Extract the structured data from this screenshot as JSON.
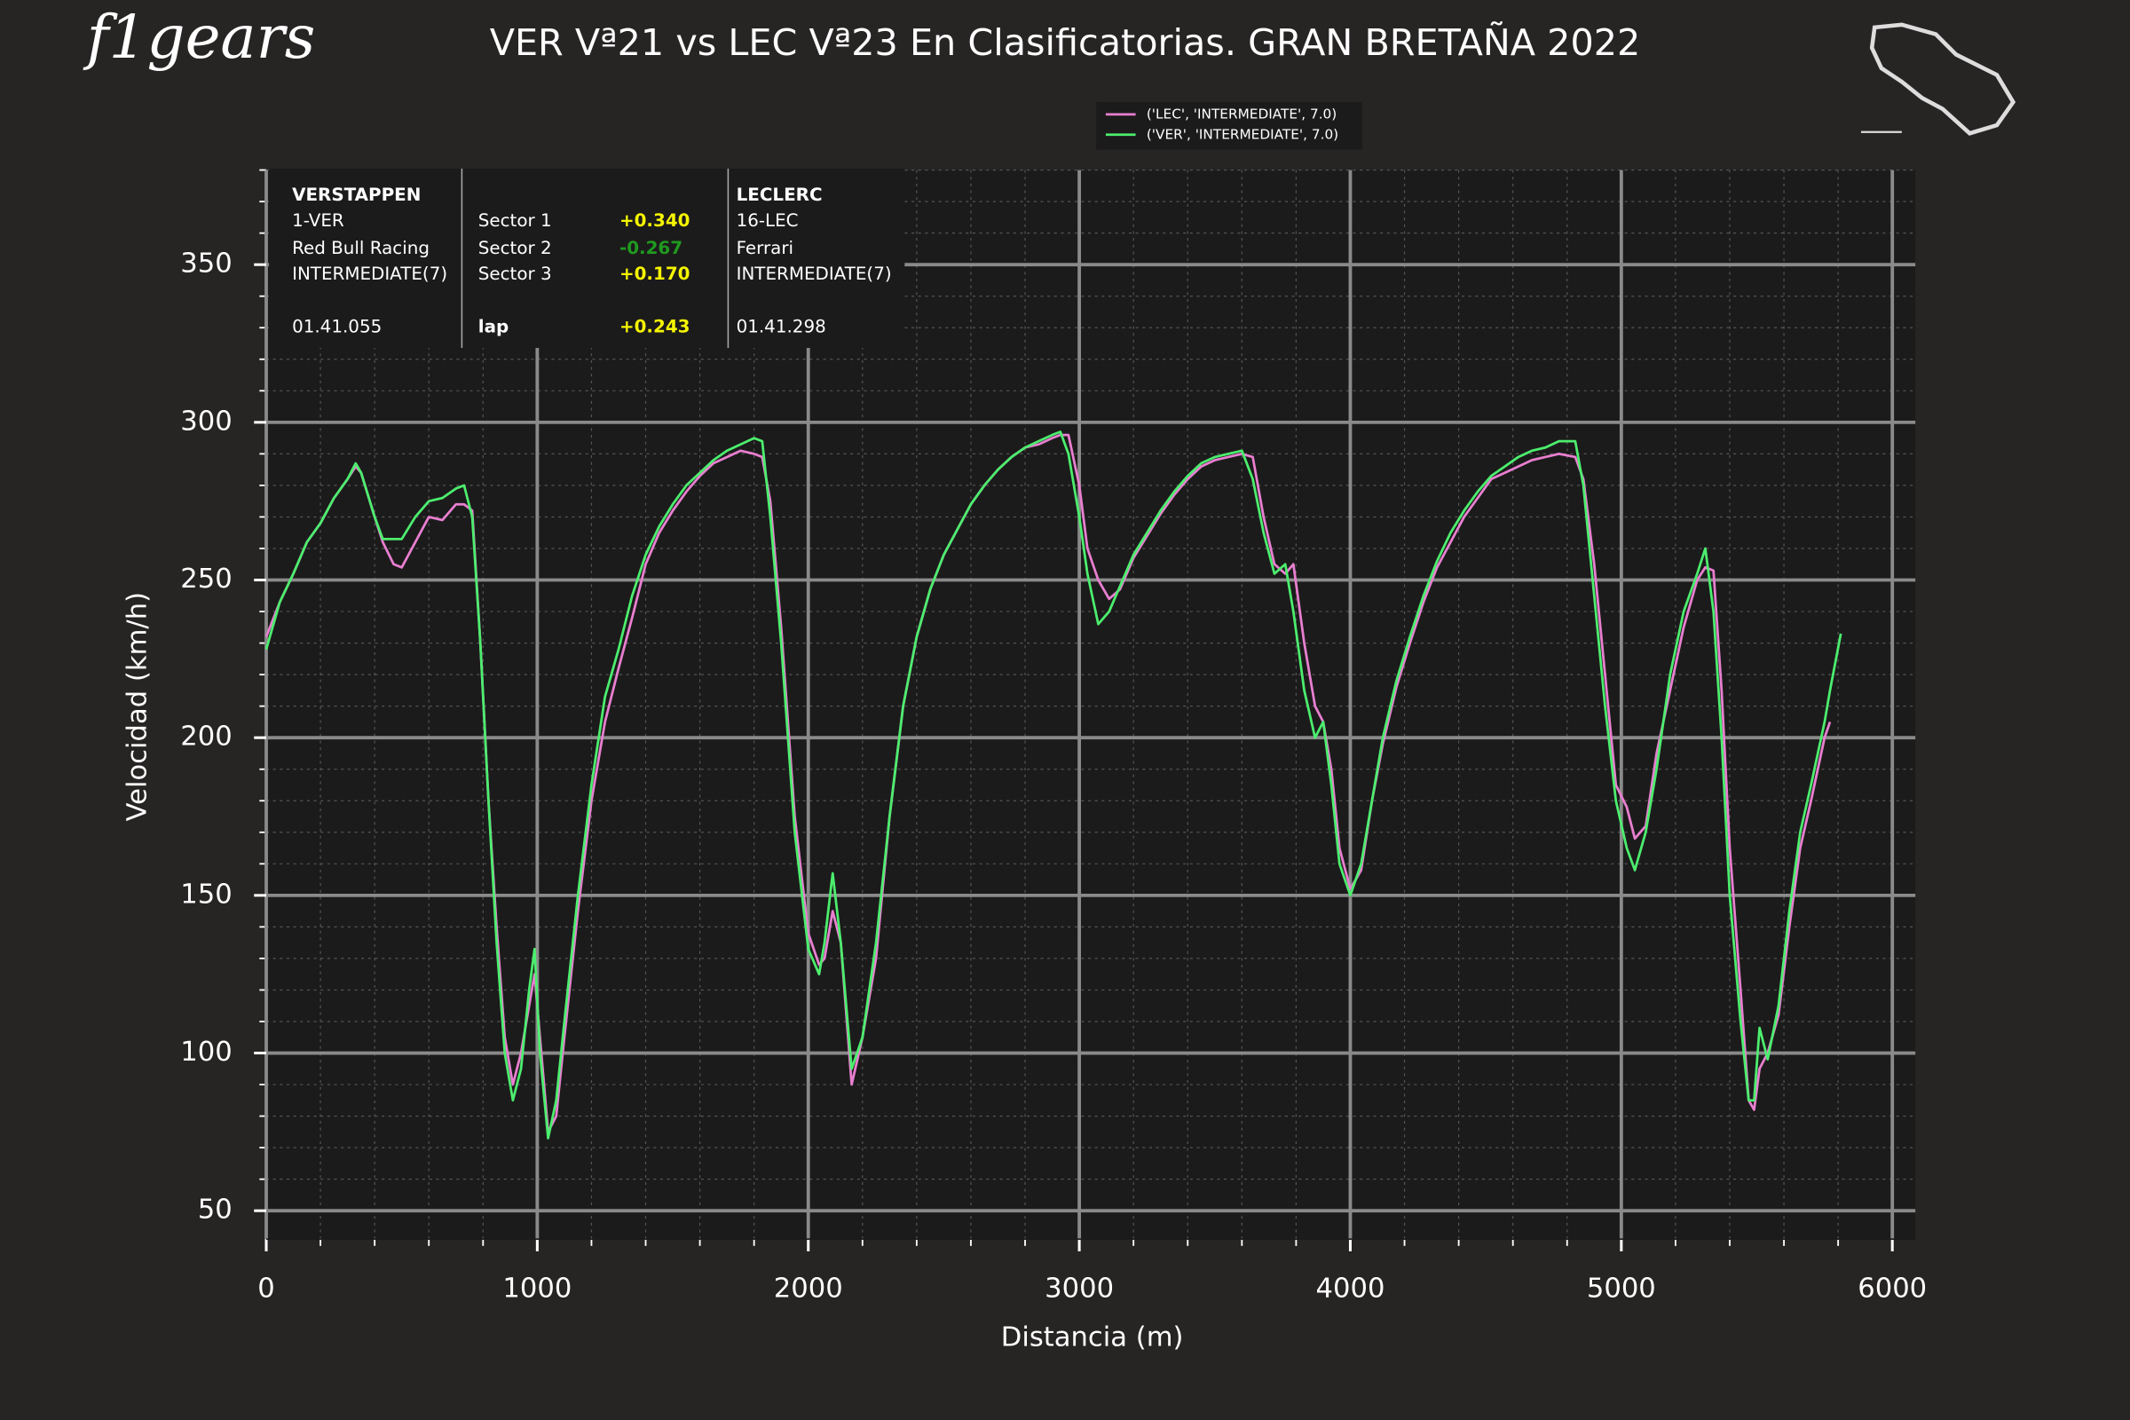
{
  "chart_data": {
    "type": "line",
    "title": "VER Vª21 vs LEC Vª23 En Clasificatorias. GRAN BRETAÑA 2022",
    "x_label": "Distancia (m)",
    "y_label": "Velocidad (km/h)",
    "logo": "f1gears",
    "x": [
      0,
      50,
      100,
      150,
      200,
      250,
      300,
      330,
      350,
      400,
      430,
      470,
      500,
      550,
      600,
      650,
      700,
      730,
      760,
      790,
      820,
      850,
      880,
      910,
      940,
      970,
      990,
      1010,
      1040,
      1070,
      1100,
      1150,
      1200,
      1250,
      1300,
      1350,
      1400,
      1450,
      1500,
      1550,
      1600,
      1650,
      1700,
      1750,
      1800,
      1830,
      1860,
      1900,
      1950,
      2000,
      2040,
      2060,
      2090,
      2120,
      2160,
      2200,
      2250,
      2300,
      2350,
      2400,
      2450,
      2500,
      2550,
      2600,
      2650,
      2700,
      2750,
      2800,
      2850,
      2900,
      2930,
      2960,
      3000,
      3030,
      3070,
      3110,
      3150,
      3200,
      3250,
      3300,
      3350,
      3400,
      3450,
      3500,
      3550,
      3600,
      3640,
      3680,
      3720,
      3760,
      3790,
      3830,
      3870,
      3900,
      3930,
      3960,
      4000,
      4040,
      4080,
      4120,
      4170,
      4220,
      4270,
      4320,
      4370,
      4420,
      4470,
      4520,
      4570,
      4620,
      4670,
      4720,
      4770,
      4830,
      4860,
      4900,
      4940,
      4980,
      5020,
      5050,
      5090,
      5130,
      5180,
      5230,
      5280,
      5310,
      5340,
      5370,
      5400,
      5440,
      5470,
      5490,
      5510,
      5540,
      5580,
      5620,
      5660,
      5700,
      5750,
      5770,
      5810
    ],
    "series": [
      {
        "name": "('LEC', 'INTERMEDIATE', 7.0)",
        "color": "#e87fd0",
        "values": [
          232,
          243,
          252,
          262,
          268,
          276,
          282,
          286,
          284,
          270,
          262,
          255,
          254,
          262,
          270,
          269,
          274,
          274,
          272,
          230,
          180,
          140,
          105,
          90,
          100,
          115,
          125,
          105,
          75,
          80,
          105,
          145,
          180,
          205,
          222,
          238,
          255,
          265,
          272,
          278,
          283,
          287,
          289,
          291,
          290,
          289,
          275,
          235,
          175,
          138,
          128,
          130,
          145,
          135,
          90,
          105,
          130,
          175,
          210,
          232,
          247,
          258,
          266,
          274,
          280,
          285,
          289,
          292,
          293,
          295,
          296,
          296,
          280,
          260,
          250,
          244,
          247,
          257,
          264,
          271,
          277,
          282,
          286,
          288,
          289,
          290,
          289,
          270,
          255,
          252,
          255,
          230,
          210,
          205,
          190,
          165,
          152,
          158,
          180,
          198,
          216,
          230,
          243,
          254,
          262,
          270,
          276,
          282,
          284,
          286,
          288,
          289,
          290,
          289,
          282,
          255,
          220,
          185,
          178,
          168,
          172,
          195,
          215,
          235,
          250,
          254,
          253,
          215,
          165,
          120,
          85,
          82,
          95,
          100,
          112,
          140,
          165,
          180,
          200,
          205,
          null
        ]
      },
      {
        "name": "('VER', 'INTERMEDIATE', 7.0)",
        "color": "#4cee6e",
        "values": [
          228,
          243,
          252,
          262,
          268,
          276,
          282,
          287,
          284,
          270,
          263,
          263,
          263,
          270,
          275,
          276,
          279,
          280,
          270,
          230,
          180,
          135,
          100,
          85,
          95,
          120,
          133,
          100,
          73,
          85,
          110,
          150,
          185,
          213,
          228,
          245,
          258,
          267,
          274,
          280,
          284,
          288,
          291,
          293,
          295,
          294,
          270,
          230,
          170,
          133,
          125,
          135,
          157,
          135,
          95,
          105,
          135,
          175,
          210,
          232,
          247,
          258,
          266,
          274,
          280,
          285,
          289,
          292,
          294,
          296,
          297,
          290,
          270,
          252,
          236,
          240,
          248,
          258,
          265,
          272,
          278,
          283,
          287,
          289,
          290,
          291,
          282,
          265,
          252,
          255,
          240,
          215,
          200,
          205,
          185,
          160,
          150,
          160,
          180,
          200,
          218,
          232,
          245,
          256,
          265,
          272,
          278,
          283,
          286,
          289,
          291,
          292,
          294,
          294,
          280,
          245,
          210,
          180,
          165,
          158,
          170,
          190,
          220,
          240,
          252,
          260,
          240,
          200,
          150,
          110,
          85,
          85,
          108,
          98,
          115,
          145,
          170,
          185,
          205,
          215,
          233
        ]
      }
    ],
    "xlim": [
      0,
      6085
    ],
    "ylim": [
      41,
      380
    ],
    "xticks": [
      0,
      1000,
      2000,
      3000,
      4000,
      5000,
      6000
    ],
    "yticks": [
      50,
      100,
      150,
      200,
      250,
      300,
      350
    ],
    "grid": true,
    "legend": "top",
    "info_box": {
      "driver1": {
        "name": "VERSTAPPEN",
        "code": "1-VER",
        "team": "Red Bull Racing",
        "tyre": "INTERMEDIATE(7)",
        "time": "01.41.055"
      },
      "sectors": [
        "Sector 1",
        "Sector 2",
        "Sector 3",
        "lap"
      ],
      "deltas": [
        "+0.340",
        "-0.267",
        "+0.170",
        "+0.243"
      ],
      "driver2": {
        "name": "LECLERC",
        "code": "16-LEC",
        "team": "Ferrari",
        "tyre": "INTERMEDIATE(7)",
        "time": "01.41.298"
      }
    }
  }
}
